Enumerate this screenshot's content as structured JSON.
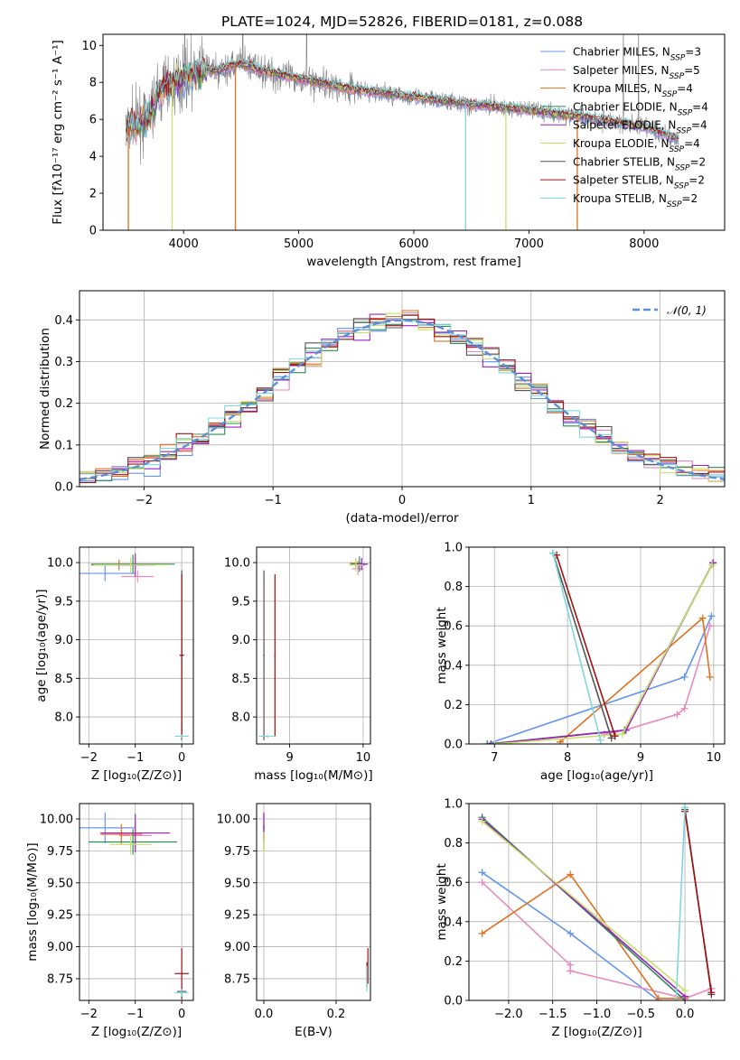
{
  "figure_title": "PLATE=1024, MJD=52826, FIBERID=0181, z=0.088",
  "colors": {
    "chabrier_miles": "#6495ED",
    "salpeter_miles": "#E88ABF",
    "kroupa_miles": "#E07020",
    "chabrier_elodie": "#2E8B57",
    "salpeter_elodie": "#A020C0",
    "kroupa_elodie": "#C8E06A",
    "chabrier_stelib": "#555555",
    "salpeter_stelib": "#A01010",
    "kroupa_stelib": "#7FD8DC",
    "data_spectrum": "#808080",
    "normal_curve": "#5B8FD9",
    "grid": "#b0b0b0"
  },
  "legend_models": [
    {
      "key": "chabrier_miles",
      "name": "Chabrier MILES",
      "n": "3"
    },
    {
      "key": "salpeter_miles",
      "name": "Salpeter MILES",
      "n": "5"
    },
    {
      "key": "kroupa_miles",
      "name": "Kroupa MILES",
      "n": "4"
    },
    {
      "key": "chabrier_elodie",
      "name": "Chabrier ELODIE",
      "n": "4"
    },
    {
      "key": "salpeter_elodie",
      "name": "Salpeter ELODIE",
      "n": "4"
    },
    {
      "key": "kroupa_elodie",
      "name": "Kroupa ELODIE",
      "n": "4"
    },
    {
      "key": "chabrier_stelib",
      "name": "Chabrier STELIB",
      "n": "2"
    },
    {
      "key": "salpeter_stelib",
      "name": "Salpeter STELIB",
      "n": "2"
    },
    {
      "key": "kroupa_stelib",
      "name": "Kroupa STELIB",
      "n": "2"
    }
  ],
  "chart_data": [
    {
      "id": "spectrum",
      "type": "line",
      "xlabel": "wavelength [Angstrom, rest frame]",
      "ylabel": "Flux [fλ10⁻¹⁷ erg cm⁻² s⁻¹ A⁻¹]",
      "xlim": [
        3300,
        8700
      ],
      "ylim": [
        0,
        10.6
      ],
      "xticks": [
        4000,
        5000,
        6000,
        7000,
        8000
      ],
      "yticks": [
        0,
        2,
        4,
        6,
        8,
        10
      ],
      "grid": false,
      "legend": "upper right",
      "continuum": {
        "x": [
          3500,
          3600,
          3700,
          3800,
          3900,
          4000,
          4100,
          4200,
          4300,
          4400,
          4500,
          4700,
          5000,
          5500,
          6000,
          6500,
          7000,
          7500,
          8000,
          8300
        ],
        "y": [
          5.4,
          5.8,
          6.2,
          7.6,
          7.9,
          8.3,
          8.5,
          8.7,
          8.6,
          8.9,
          9.0,
          8.6,
          8.2,
          7.6,
          7.2,
          6.8,
          6.5,
          6.1,
          5.6,
          4.9
        ]
      },
      "drops": [
        {
          "series": "kroupa_miles",
          "x": 3520
        },
        {
          "series": "kroupa_elodie",
          "x": 3900
        },
        {
          "series": "kroupa_miles",
          "x": 4450
        },
        {
          "series": "kroupa_stelib",
          "x": 6450
        },
        {
          "series": "kroupa_elodie",
          "x": 6800
        },
        {
          "series": "kroupa_miles",
          "x": 7420
        }
      ]
    },
    {
      "id": "residuals",
      "type": "step",
      "xlabel": "(data-model)/error",
      "ylabel": "Normed distribution",
      "xlim": [
        -2.5,
        2.5
      ],
      "ylim": [
        0,
        0.47
      ],
      "xticks": [
        -2,
        -1,
        0,
        1,
        2
      ],
      "yticks": [
        0.0,
        0.1,
        0.2,
        0.3,
        0.4
      ],
      "grid": true,
      "legend": "upper right",
      "normal_label": "𝒩(0, 1)",
      "bin_edges_range": [
        -2.5,
        2.5
      ],
      "bins": 40
    },
    {
      "id": "age_vs_Z",
      "type": "scatter",
      "xlabel": "Z [log₁₀(Z/Z⊙)]",
      "ylabel": "age  [log₁₀(age/yr)]",
      "xlim": [
        -2.2,
        0.25
      ],
      "ylim": [
        7.65,
        10.2
      ],
      "xticks": [
        -2,
        -1,
        0
      ],
      "yticks": [
        8.0,
        8.5,
        9.0,
        9.5,
        10.0
      ],
      "grid": true,
      "points": [
        {
          "s": "chabrier_miles",
          "x": -1.65,
          "y": 9.86,
          "xerr": 0.65,
          "yerr": 0.1
        },
        {
          "s": "salpeter_miles",
          "x": -0.95,
          "y": 9.82,
          "xerr": 0.35,
          "yerr": 0.08
        },
        {
          "s": "kroupa_miles",
          "x": -1.35,
          "y": 9.97,
          "xerr": 0.6,
          "yerr": 0.07
        },
        {
          "s": "chabrier_elodie",
          "x": -1.05,
          "y": 9.98,
          "xerr": 0.9,
          "yerr": 0.12
        },
        {
          "s": "salpeter_elodie",
          "x": -1.0,
          "y": 9.97,
          "xerr": 0.4,
          "yerr": 0.15
        },
        {
          "s": "kroupa_elodie",
          "x": -1.1,
          "y": 9.97,
          "xerr": 0.8,
          "yerr": 0.1
        },
        {
          "s": "chabrier_stelib",
          "x": 0.0,
          "y": 8.8,
          "xerr": 0.05,
          "yerr": 1.1
        },
        {
          "s": "salpeter_stelib",
          "x": 0.0,
          "y": 8.8,
          "xerr": 0.04,
          "yerr": 1.05
        },
        {
          "s": "kroupa_stelib",
          "x": 0.0,
          "y": 7.75,
          "xerr": 0.15,
          "yerr": 0.02
        }
      ]
    },
    {
      "id": "age_vs_mass",
      "type": "scatter",
      "xlabel": "mass [log₁₀(M/M⊙)]",
      "ylabel": "",
      "xlim": [
        8.55,
        10.1
      ],
      "ylim": [
        7.65,
        10.2
      ],
      "xticks": [
        9,
        10
      ],
      "yticks": [
        8.0,
        8.5,
        9.0,
        9.5,
        10.0
      ],
      "grid": true,
      "points": [
        {
          "s": "chabrier_miles",
          "x": 9.93,
          "y": 9.97,
          "xerr": 0.1,
          "yerr": 0.05
        },
        {
          "s": "salpeter_miles",
          "x": 9.93,
          "y": 9.92,
          "xerr": 0.08,
          "yerr": 0.08
        },
        {
          "s": "kroupa_miles",
          "x": 9.9,
          "y": 9.99,
          "xerr": 0.08,
          "yerr": 0.06
        },
        {
          "s": "chabrier_elodie",
          "x": 9.95,
          "y": 9.98,
          "xerr": 0.12,
          "yerr": 0.1
        },
        {
          "s": "salpeter_elodie",
          "x": 9.98,
          "y": 9.98,
          "xerr": 0.08,
          "yerr": 0.08
        },
        {
          "s": "kroupa_elodie",
          "x": 9.9,
          "y": 9.97,
          "xerr": 0.1,
          "yerr": 0.09
        },
        {
          "s": "chabrier_stelib",
          "x": 8.65,
          "y": 8.8,
          "xerr": 0.01,
          "yerr": 1.1
        },
        {
          "s": "salpeter_stelib",
          "x": 8.8,
          "y": 8.8,
          "xerr": 0.01,
          "yerr": 1.05
        },
        {
          "s": "kroupa_stelib",
          "x": 8.7,
          "y": 7.75,
          "xerr": 0.12,
          "yerr": 0.02
        }
      ]
    },
    {
      "id": "weight_vs_age",
      "type": "line",
      "xlabel": "age  [log₁₀(age/yr)]",
      "ylabel": "mass weight",
      "xlim": [
        6.65,
        10.15
      ],
      "ylim": [
        0,
        1.0
      ],
      "xticks": [
        7,
        8,
        9,
        10
      ],
      "yticks": [
        0.0,
        0.2,
        0.4,
        0.6,
        0.8,
        1.0
      ],
      "grid": true,
      "series": [
        {
          "s": "chabrier_miles",
          "x": [
            6.9,
            9.6,
            9.97
          ],
          "y": [
            0.0,
            0.34,
            0.65
          ]
        },
        {
          "s": "salpeter_miles",
          "x": [
            8.5,
            8.78,
            9.5,
            9.6,
            9.95
          ],
          "y": [
            0.05,
            0.07,
            0.15,
            0.18,
            0.6
          ]
        },
        {
          "s": "kroupa_miles",
          "x": [
            7.9,
            9.85,
            9.95
          ],
          "y": [
            0.01,
            0.64,
            0.34
          ]
        },
        {
          "s": "chabrier_elodie",
          "x": [
            6.9,
            8.78,
            9.99
          ],
          "y": [
            0.0,
            0.07,
            0.92
          ]
        },
        {
          "s": "salpeter_elodie",
          "x": [
            6.95,
            8.8,
            9.99
          ],
          "y": [
            0.0,
            0.07,
            0.92
          ]
        },
        {
          "s": "kroupa_elodie",
          "x": [
            7.0,
            8.75,
            9.98
          ],
          "y": [
            0.0,
            0.05,
            0.91
          ]
        },
        {
          "s": "chabrier_stelib",
          "x": [
            7.8,
            8.6
          ],
          "y": [
            0.97,
            0.03
          ]
        },
        {
          "s": "salpeter_stelib",
          "x": [
            7.85,
            8.65
          ],
          "y": [
            0.96,
            0.04
          ]
        },
        {
          "s": "kroupa_stelib",
          "x": [
            7.8,
            8.45
          ],
          "y": [
            0.97,
            0.02
          ]
        }
      ]
    },
    {
      "id": "mass_vs_Z",
      "type": "scatter",
      "xlabel": "Z [log₁₀(Z/Z⊙)]",
      "ylabel": "mass [log₁₀(M/M⊙)]",
      "xlim": [
        -2.2,
        0.25
      ],
      "ylim": [
        8.58,
        10.12
      ],
      "xticks": [
        -2,
        -1,
        0
      ],
      "yticks": [
        8.75,
        9.0,
        9.25,
        9.5,
        9.75,
        10.0
      ],
      "grid": true,
      "points": [
        {
          "s": "chabrier_miles",
          "x": -1.65,
          "y": 9.93,
          "xerr": 0.65,
          "yerr": 0.12
        },
        {
          "s": "salpeter_miles",
          "x": -1.0,
          "y": 9.87,
          "xerr": 0.35,
          "yerr": 0.1
        },
        {
          "s": "kroupa_miles",
          "x": -1.3,
          "y": 9.88,
          "xerr": 0.45,
          "yerr": 0.08
        },
        {
          "s": "chabrier_elodie",
          "x": -1.05,
          "y": 9.82,
          "xerr": 0.95,
          "yerr": 0.1
        },
        {
          "s": "salpeter_elodie",
          "x": -1.0,
          "y": 9.89,
          "xerr": 0.75,
          "yerr": 0.15
        },
        {
          "s": "kroupa_elodie",
          "x": -1.1,
          "y": 9.8,
          "xerr": 0.45,
          "yerr": 0.08
        },
        {
          "s": "chabrier_stelib",
          "x": 0.0,
          "y": 8.65,
          "xerr": 0.1,
          "yerr": 0.03
        },
        {
          "s": "salpeter_stelib",
          "x": 0.0,
          "y": 8.79,
          "xerr": 0.15,
          "yerr": 0.2
        },
        {
          "s": "kroupa_stelib",
          "x": 0.0,
          "y": 8.64,
          "xerr": 0.15,
          "yerr": 0.03
        }
      ]
    },
    {
      "id": "mass_vs_ebv",
      "type": "scatter",
      "xlabel": "E(B-V)",
      "ylabel": "",
      "xlim": [
        -0.02,
        0.295
      ],
      "ylim": [
        8.58,
        10.12
      ],
      "xticks": [
        0.0,
        0.2
      ],
      "yticks": [
        8.75,
        9.0,
        9.25,
        9.5,
        9.75,
        10.0
      ],
      "grid": true,
      "points": [
        {
          "s": "chabrier_miles",
          "x": 0.0,
          "y": 9.93,
          "xerr": 0.0,
          "yerr": 0.1
        },
        {
          "s": "salpeter_miles",
          "x": 0.0,
          "y": 9.87,
          "xerr": 0.0,
          "yerr": 0.08
        },
        {
          "s": "kroupa_miles",
          "x": 0.0,
          "y": 9.88,
          "xerr": 0.0,
          "yerr": 0.07
        },
        {
          "s": "chabrier_elodie",
          "x": 0.0,
          "y": 9.85,
          "xerr": 0.0,
          "yerr": 0.1
        },
        {
          "s": "salpeter_elodie",
          "x": 0.0,
          "y": 9.95,
          "xerr": 0.0,
          "yerr": 0.1
        },
        {
          "s": "kroupa_elodie",
          "x": 0.0,
          "y": 9.82,
          "xerr": 0.0,
          "yerr": 0.08
        },
        {
          "s": "chabrier_stelib",
          "x": 0.285,
          "y": 8.78,
          "xerr": 0.0,
          "yerr": 0.1
        },
        {
          "s": "salpeter_stelib",
          "x": 0.288,
          "y": 8.85,
          "xerr": 0.0,
          "yerr": 0.14
        },
        {
          "s": "kroupa_stelib",
          "x": 0.285,
          "y": 8.75,
          "xerr": 0.0,
          "yerr": 0.1
        }
      ]
    },
    {
      "id": "weight_vs_Z",
      "type": "line",
      "xlabel": "Z [log₁₀(Z/Z⊙)]",
      "ylabel": "mass weight",
      "xlim": [
        -2.45,
        0.45
      ],
      "ylim": [
        0,
        1.0
      ],
      "xticks": [
        -2.0,
        -1.5,
        -1.0,
        -0.5,
        0.0
      ],
      "yticks": [
        0.0,
        0.2,
        0.4,
        0.6,
        0.8,
        1.0
      ],
      "grid": true,
      "series": [
        {
          "s": "chabrier_miles",
          "x": [
            -2.3,
            -1.3,
            -0.3
          ],
          "y": [
            0.65,
            0.34,
            0.0
          ]
        },
        {
          "s": "salpeter_miles",
          "x": [
            -2.3,
            -1.3,
            -1.3,
            0.0,
            0.3
          ],
          "y": [
            0.6,
            0.18,
            0.15,
            0.01,
            0.06
          ]
        },
        {
          "s": "kroupa_miles",
          "x": [
            -2.3,
            -1.3,
            -0.3,
            0.0
          ],
          "y": [
            0.34,
            0.64,
            0.01,
            0.01
          ]
        },
        {
          "s": "chabrier_elodie",
          "x": [
            -2.3,
            0.0
          ],
          "y": [
            0.93,
            0.0
          ]
        },
        {
          "s": "salpeter_elodie",
          "x": [
            -2.3,
            0.0
          ],
          "y": [
            0.92,
            0.02
          ]
        },
        {
          "s": "kroupa_elodie",
          "x": [
            -2.3,
            0.0
          ],
          "y": [
            0.91,
            0.05
          ]
        },
        {
          "s": "chabrier_stelib",
          "x": [
            0.0,
            0.3
          ],
          "y": [
            0.97,
            0.03
          ]
        },
        {
          "s": "salpeter_stelib",
          "x": [
            0.0,
            0.3
          ],
          "y": [
            0.96,
            0.04
          ]
        },
        {
          "s": "kroupa_stelib",
          "x": [
            -0.1,
            0.0
          ],
          "y": [
            0.0,
            0.98
          ]
        }
      ]
    }
  ]
}
